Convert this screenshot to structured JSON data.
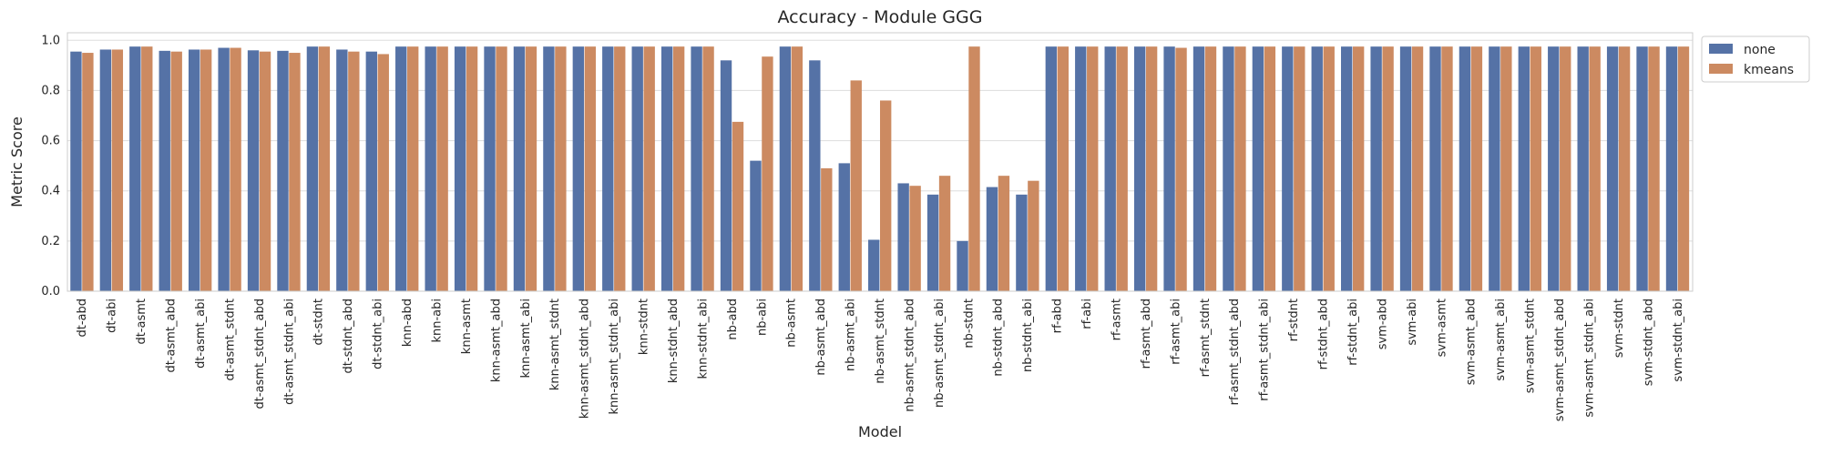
{
  "chart_data": {
    "type": "bar",
    "title": "Accuracy - Module GGG",
    "xlabel": "Model",
    "ylabel": "Metric Score",
    "ylim": [
      0,
      1.03
    ],
    "yticks": [
      "0.0",
      "0.2",
      "0.4",
      "0.6",
      "0.8",
      "1.0"
    ],
    "grid": true,
    "legend_position": "outside-right",
    "categories": [
      "dt-abd",
      "dt-abi",
      "dt-asmt",
      "dt-asmt_abd",
      "dt-asmt_abi",
      "dt-asmt_stdnt",
      "dt-asmt_stdnt_abd",
      "dt-asmt_stdnt_abi",
      "dt-stdnt",
      "dt-stdnt_abd",
      "dt-stdnt_abi",
      "knn-abd",
      "knn-abi",
      "knn-asmt",
      "knn-asmt_abd",
      "knn-asmt_abi",
      "knn-asmt_stdnt",
      "knn-asmt_stdnt_abd",
      "knn-asmt_stdnt_abi",
      "knn-stdnt",
      "knn-stdnt_abd",
      "knn-stdnt_abi",
      "nb-abd",
      "nb-abi",
      "nb-asmt",
      "nb-asmt_abd",
      "nb-asmt_abi",
      "nb-asmt_stdnt",
      "nb-asmt_stdnt_abd",
      "nb-asmt_stdnt_abi",
      "nb-stdnt",
      "nb-stdnt_abd",
      "nb-stdnt_abi",
      "rf-abd",
      "rf-abi",
      "rf-asmt",
      "rf-asmt_abd",
      "rf-asmt_abi",
      "rf-asmt_stdnt",
      "rf-asmt_stdnt_abd",
      "rf-asmt_stdnt_abi",
      "rf-stdnt",
      "rf-stdnt_abd",
      "rf-stdnt_abi",
      "svm-abd",
      "svm-abi",
      "svm-asmt",
      "svm-asmt_abd",
      "svm-asmt_abi",
      "svm-asmt_stdnt",
      "svm-asmt_stdnt_abd",
      "svm-asmt_stdnt_abi",
      "svm-stdnt",
      "svm-stdnt_abd",
      "svm-stdnt_abi"
    ],
    "series": [
      {
        "name": "none",
        "color": "#5572a6",
        "values": [
          0.955,
          0.963,
          0.975,
          0.958,
          0.963,
          0.97,
          0.96,
          0.958,
          0.975,
          0.963,
          0.955,
          0.975,
          0.975,
          0.975,
          0.975,
          0.975,
          0.975,
          0.975,
          0.975,
          0.975,
          0.975,
          0.975,
          0.92,
          0.52,
          0.975,
          0.92,
          0.51,
          0.205,
          0.43,
          0.385,
          0.2,
          0.415,
          0.385,
          0.975,
          0.975,
          0.975,
          0.975,
          0.975,
          0.975,
          0.975,
          0.975,
          0.975,
          0.975,
          0.975,
          0.975,
          0.975,
          0.975,
          0.975,
          0.975,
          0.975,
          0.975,
          0.975,
          0.975,
          0.975,
          0.975
        ]
      },
      {
        "name": "kmeans",
        "color": "#cc8a61",
        "values": [
          0.95,
          0.963,
          0.975,
          0.955,
          0.963,
          0.97,
          0.955,
          0.95,
          0.975,
          0.955,
          0.945,
          0.975,
          0.975,
          0.975,
          0.975,
          0.975,
          0.975,
          0.975,
          0.975,
          0.975,
          0.975,
          0.975,
          0.675,
          0.935,
          0.975,
          0.49,
          0.84,
          0.76,
          0.42,
          0.46,
          0.975,
          0.46,
          0.44,
          0.975,
          0.975,
          0.975,
          0.975,
          0.97,
          0.975,
          0.975,
          0.975,
          0.975,
          0.975,
          0.975,
          0.975,
          0.975,
          0.975,
          0.975,
          0.975,
          0.975,
          0.975,
          0.975,
          0.975,
          0.975,
          0.975
        ]
      }
    ]
  }
}
